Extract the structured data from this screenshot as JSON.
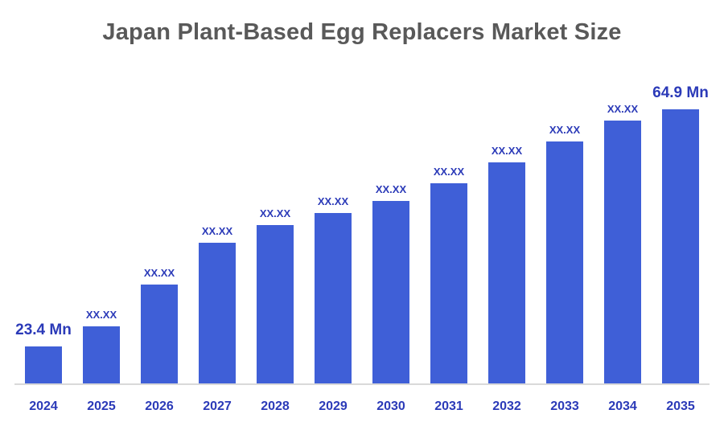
{
  "title": "Japan Plant-Based Egg Replacers Market Size",
  "colors": {
    "bar": "#3f5fd7",
    "label": "#2b3ab8",
    "title": "#595959",
    "axis": "#d9d9d9"
  },
  "chart_data": {
    "type": "bar",
    "title": "Japan Plant-Based Egg Replacers Market Size",
    "xlabel": "",
    "ylabel": "",
    "unit": "Mn",
    "legend_position": "none",
    "grid": false,
    "categories": [
      "2024",
      "2025",
      "2026",
      "2027",
      "2028",
      "2029",
      "2030",
      "2031",
      "2032",
      "2033",
      "2034",
      "2035"
    ],
    "value_labels": [
      "23.4 Mn",
      "XX.XX",
      "XX.XX",
      "XX.XX",
      "XX.XX",
      "XX.XX",
      "XX.XX",
      "XX.XX",
      "XX.XX",
      "XX.XX",
      "XX.XX",
      "64.9 Mn"
    ],
    "known_values": {
      "2024": 23.4,
      "2035": 64.9
    },
    "hidden_values_masked_as": "XX.XX",
    "bar_height_pct_of_plot": [
      12.5,
      19,
      33,
      47,
      53,
      57,
      61,
      67,
      74,
      81,
      88,
      95
    ]
  }
}
